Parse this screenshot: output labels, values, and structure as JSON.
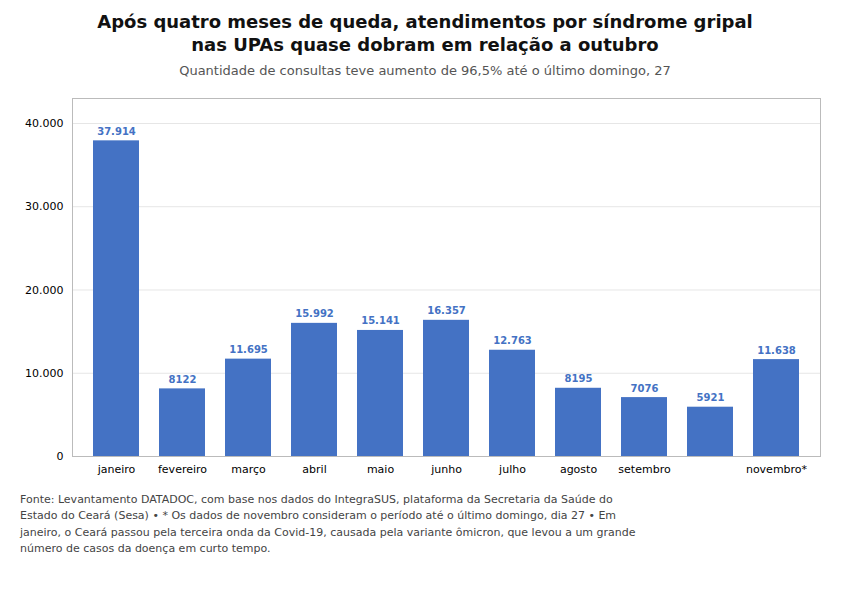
{
  "chart_data": {
    "type": "bar",
    "title": "Após quatro meses de queda, atendimentos por síndrome gripal\nnas UPAs quase dobram em relação a outubro",
    "subtitle": "Quantidade de consultas teve aumento de 96,5% até o último domingo, 27",
    "caption": "Fonte: Levantamento DATADOC, com base nos dados do IntegraSUS, plataforma da Secretaria da Saúde do\nEstado do Ceará (Sesa) • * Os dados de novembro consideram o período até o último domingo, dia 27 • Em\njaneiro, o Ceará passou pela terceira onda da Covid-19, causada pela variante ômicron, que levou a um grande\nnúmero de casos da doença em curto tempo.",
    "categories": [
      "janeiro",
      "fevereiro",
      "março",
      "abril",
      "maio",
      "junho",
      "julho",
      "agosto",
      "setembro",
      null,
      "novembro*"
    ],
    "values": [
      37914,
      8122,
      11695,
      15992,
      15141,
      16357,
      12763,
      8195,
      7076,
      5921,
      11638
    ],
    "value_labels": [
      "37.914",
      "8122",
      "11.695",
      "15.992",
      "15.141",
      "16.357",
      "12.763",
      "8195",
      "7076",
      "5921",
      "11.638"
    ],
    "data_labels": true,
    "color": "#4472C4",
    "ylim": [
      0,
      43000
    ],
    "yticks": [
      0,
      {
        "value": 10000,
        "label": "10.000"
      },
      {
        "value": 20000,
        "label": "20.000"
      },
      {
        "value": 30000,
        "label": "30.000"
      },
      {
        "value": 40000,
        "label": "40.000"
      }
    ],
    "grid": true
  }
}
